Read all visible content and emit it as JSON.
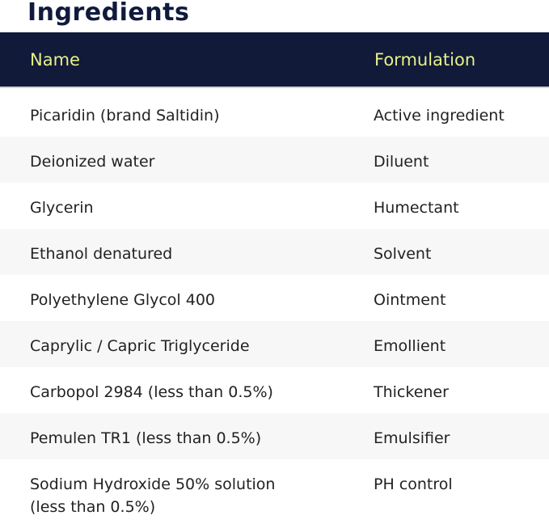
{
  "title": "Ingredients",
  "columns": [
    "Name",
    "Formulation"
  ],
  "rows": [
    {
      "name": "Picaridin (brand Saltidin)",
      "formulation": "Active ingredient"
    },
    {
      "name": "Deionized water",
      "formulation": "Diluent"
    },
    {
      "name": "Glycerin",
      "formulation": "Humectant"
    },
    {
      "name": "Ethanol denatured",
      "formulation": "Solvent"
    },
    {
      "name": "Polyethylene Glycol 400",
      "formulation": "Ointment"
    },
    {
      "name": "Caprylic / Capric Triglyceride",
      "formulation": "Emollient"
    },
    {
      "name": "Carbopol 2984 (less than 0.5%)",
      "formulation": "Thickener"
    },
    {
      "name": "Pemulen TR1 (less than 0.5%)",
      "formulation": "Emulsifier"
    },
    {
      "name": "Sodium Hydroxide 50% solution\n(less than 0.5%)",
      "formulation": "PH control"
    }
  ],
  "colors": {
    "header_bg": "#111a38",
    "header_text": "#e6f08a",
    "title": "#101a3c",
    "alt_row": "#f7f7f7"
  }
}
